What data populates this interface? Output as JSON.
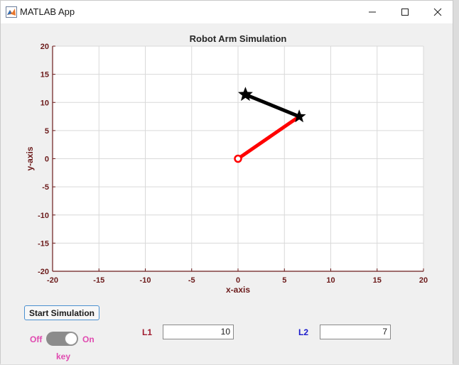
{
  "window": {
    "title": "MATLAB App"
  },
  "plot": {
    "title": "Robot Arm Simulation",
    "xlabel": "x-axis",
    "ylabel": "y-axis",
    "xlim": [
      -20,
      20
    ],
    "ylim": [
      -20,
      20
    ],
    "xticks": [
      "-20",
      "-15",
      "-10",
      "-5",
      "0",
      "5",
      "10",
      "15",
      "20"
    ],
    "yticks": [
      "20",
      "15",
      "10",
      "5",
      "0",
      "-5",
      "-10",
      "-15",
      "-20"
    ],
    "grid": true,
    "colors": {
      "axis": "#6b1a1a",
      "link1": "#ff0000",
      "link2": "#000000",
      "grid": "#d9d9d9"
    }
  },
  "chart_data": {
    "type": "line",
    "title": "Robot Arm Simulation",
    "xlabel": "x-axis",
    "ylabel": "y-axis",
    "xlim": [
      -20,
      20
    ],
    "ylim": [
      -20,
      20
    ],
    "grid": true,
    "series": [
      {
        "points": [
          [
            0,
            0
          ],
          [
            6.6,
            7.5
          ]
        ],
        "color": "#ff0000",
        "marker": "circle-start"
      },
      {
        "points": [
          [
            6.6,
            7.5
          ],
          [
            0.8,
            11.4
          ]
        ],
        "color": "#000000",
        "marker": "star"
      }
    ]
  },
  "controls": {
    "start_button": "Start Simulation",
    "toggle": {
      "off_label": "Off",
      "on_label": "On",
      "caption": "key",
      "state": "on"
    },
    "l1": {
      "label": "L1",
      "value": "10"
    },
    "l2": {
      "label": "L2",
      "value": "7"
    }
  }
}
